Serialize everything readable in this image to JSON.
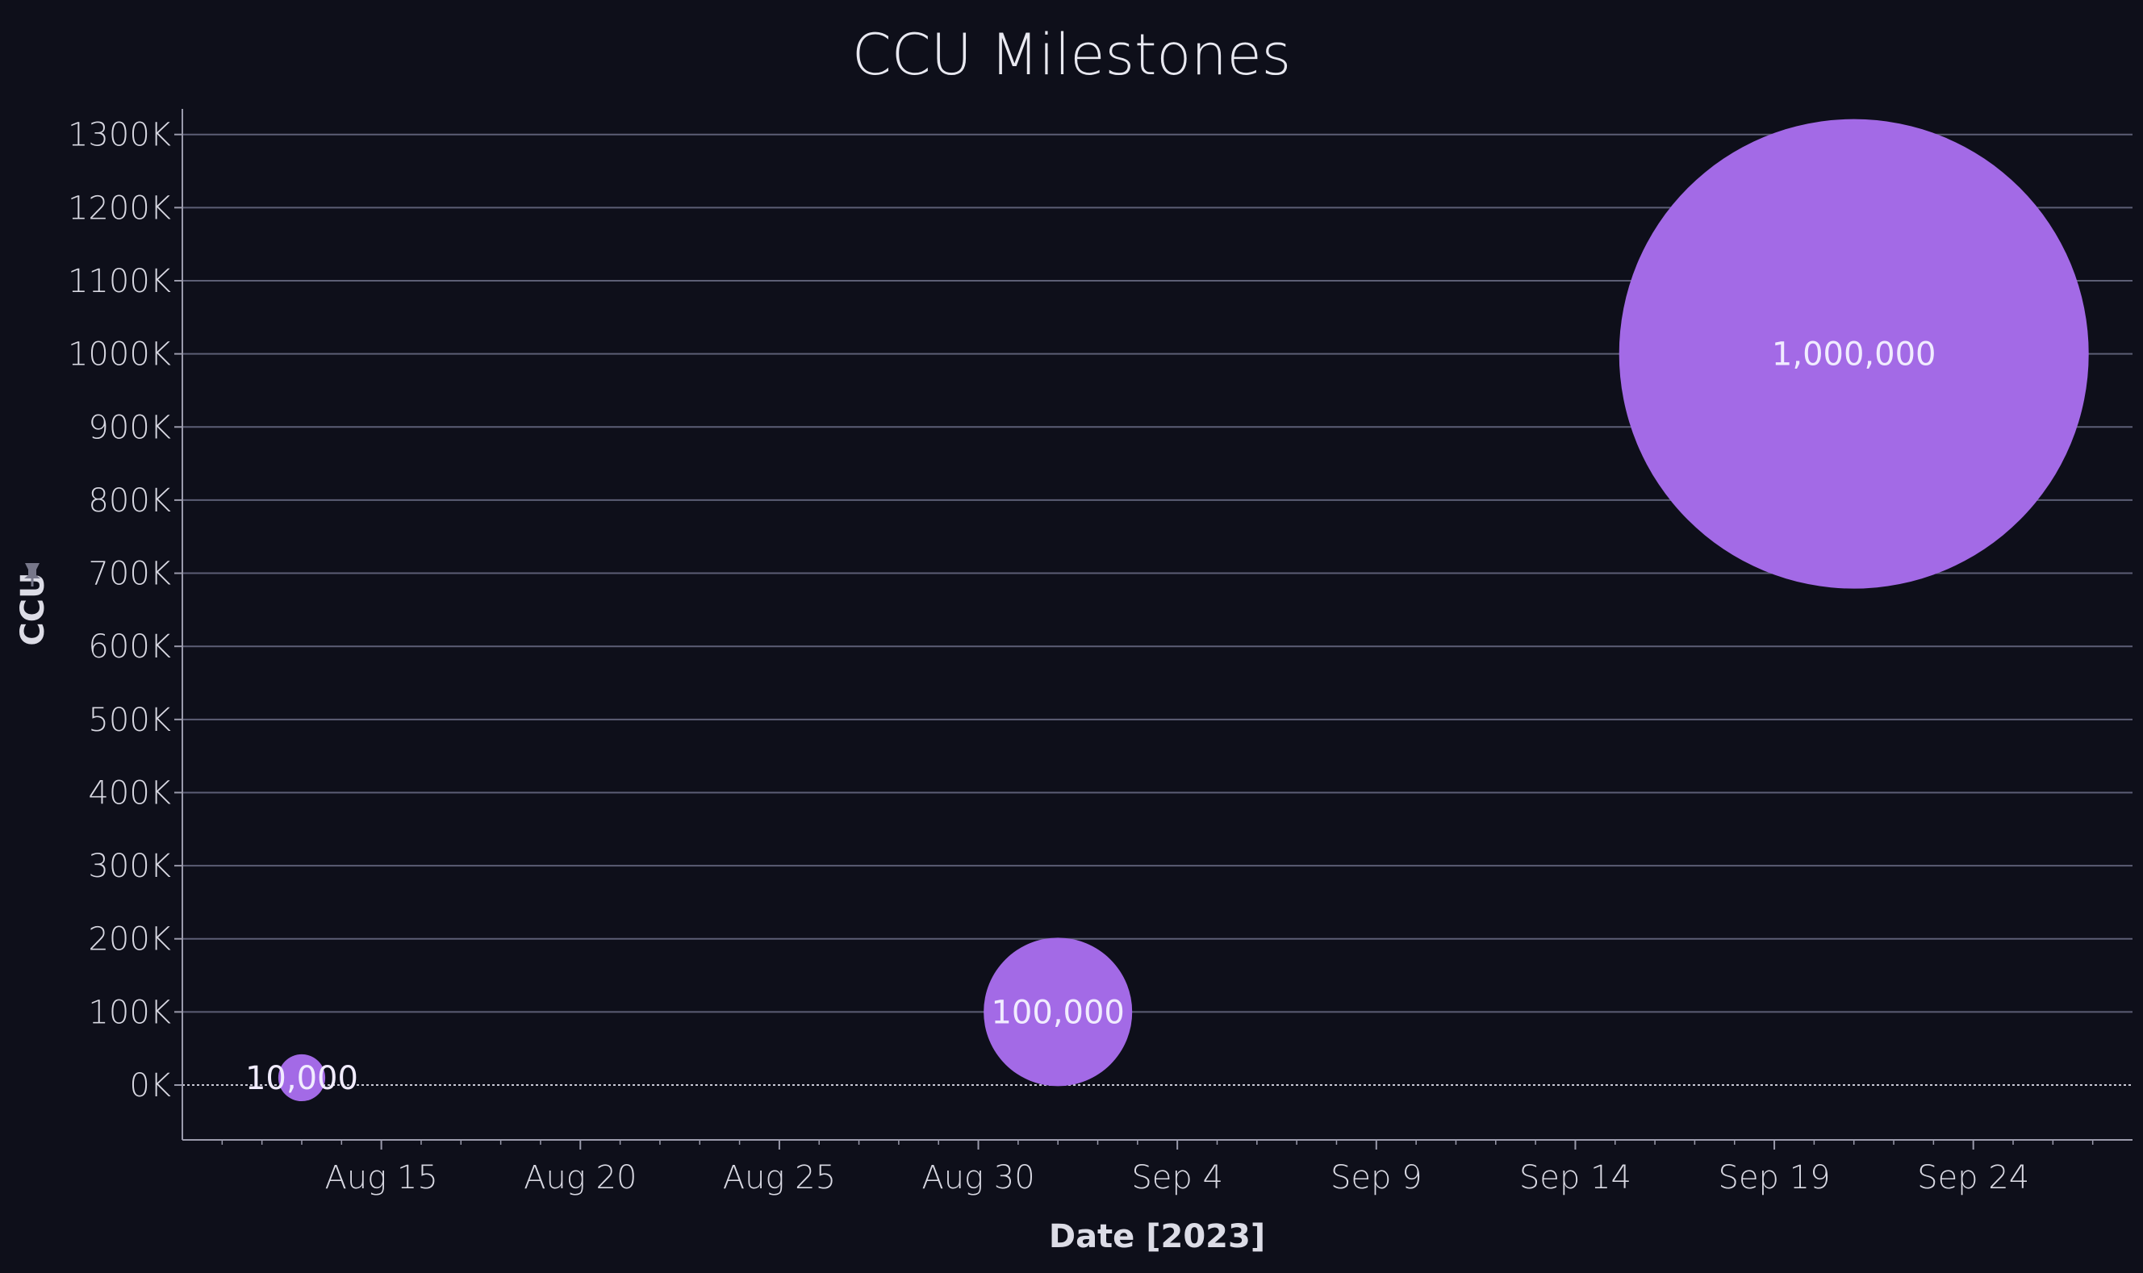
{
  "chart_data": {
    "type": "scatter",
    "title": "CCU Milestones",
    "xlabel": "Date [2023]",
    "ylabel": "CCU",
    "ylabel_icon": "pin-icon",
    "ylim": [
      -75000,
      1335000
    ],
    "xlim": [
      "2023-08-10",
      "2023-09-28"
    ],
    "yticks": [
      0,
      100000,
      200000,
      300000,
      400000,
      500000,
      600000,
      700000,
      800000,
      900000,
      1000000,
      1100000,
      1200000,
      1300000
    ],
    "ytick_labels": [
      "0K",
      "100K",
      "200K",
      "300K",
      "400K",
      "500K",
      "600K",
      "700K",
      "800K",
      "900K",
      "1000K",
      "1100K",
      "1200K",
      "1300K"
    ],
    "xticks": [
      "2023-08-15",
      "2023-08-20",
      "2023-08-25",
      "2023-08-30",
      "2023-09-04",
      "2023-09-09",
      "2023-09-14",
      "2023-09-19",
      "2023-09-24"
    ],
    "xtick_labels": [
      "Aug 15",
      "Aug 20",
      "Aug 25",
      "Aug 30",
      "Sep 4",
      "Sep 9",
      "Sep 14",
      "Sep 19",
      "Sep 24"
    ],
    "grid": true,
    "points": [
      {
        "x": "2023-08-13",
        "y": 10000,
        "label": "10,000"
      },
      {
        "x": "2023-09-01",
        "y": 100000,
        "label": "100,000"
      },
      {
        "x": "2023-09-21",
        "y": 1000000,
        "label": "1,000,000"
      }
    ],
    "bubble_size_field": "y",
    "colors": {
      "background": "#0e0f1a",
      "bubble": "#a36ae6",
      "grid": "#5c5e75",
      "axis": "#9a9aab",
      "zero_line": "#c8c8d4"
    }
  }
}
